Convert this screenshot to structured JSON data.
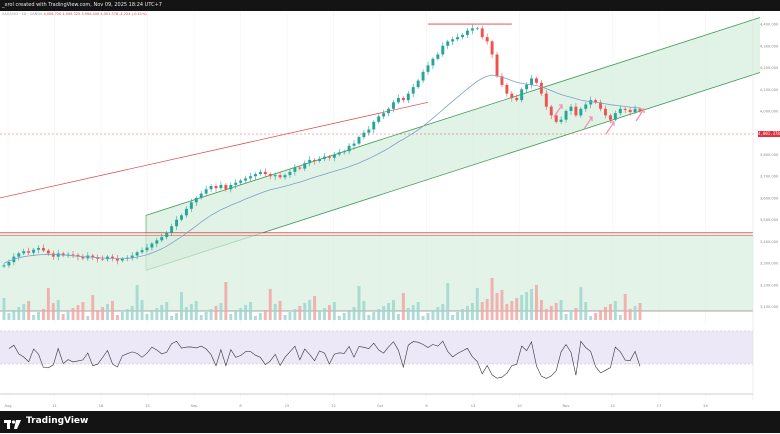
{
  "header": {
    "caption": "_xrol created with TradingView.com, Nov 09, 2025 18:24 UTC+7"
  },
  "legend": {
    "text": "XAU/USD · 1D · OANDA",
    "ohlc": "4,006.720  4,009.325  3,994.440  4,001.378  -4.224 (-0.11%)"
  },
  "price_tag": "4,001.378",
  "footer": {
    "brand": "TradingView"
  },
  "colors": {
    "up": "#26a69a",
    "down": "#ef5350",
    "channel_fill": "#d7eedd",
    "channel_line": "#3c9a55",
    "trend_line": "#e03c3c",
    "ma": "#7ea0c8",
    "rsi": "#333333",
    "rsi_band": "#ece8f7",
    "arrow": "#f48fb1"
  },
  "chart_data": [
    {
      "type": "candlestick",
      "title": "XAU/USD · 1D",
      "x_ticks": [
        "Aug",
        "11",
        "18",
        "25",
        "Sep",
        "8",
        "15",
        "22",
        "Oct",
        "6",
        "13",
        "20",
        "Nov",
        "10",
        "17",
        "24"
      ],
      "y_ticks": [
        "4,400.000",
        "4,300.000",
        "4,200.000",
        "4,100.000",
        "4,000.000",
        "3,900.000",
        "3,800.000",
        "3,700.000",
        "3,600.000",
        "3,500.000",
        "3,400.000",
        "3,300.000",
        "3,200.000",
        "3,100.000"
      ],
      "ylim": [
        3080,
        4460
      ],
      "closes": [
        3290,
        3305,
        3330,
        3345,
        3355,
        3348,
        3362,
        3370,
        3358,
        3345,
        3330,
        3345,
        3335,
        3340,
        3338,
        3330,
        3322,
        3335,
        3328,
        3320,
        3318,
        3330,
        3322,
        3312,
        3320,
        3325,
        3335,
        3350,
        3360,
        3372,
        3390,
        3405,
        3420,
        3440,
        3470,
        3500,
        3520,
        3550,
        3580,
        3600,
        3620,
        3640,
        3655,
        3645,
        3660,
        3640,
        3660,
        3670,
        3680,
        3690,
        3700,
        3710,
        3720,
        3710,
        3700,
        3705,
        3695,
        3705,
        3720,
        3740,
        3735,
        3760,
        3775,
        3770,
        3780,
        3790,
        3785,
        3800,
        3810,
        3815,
        3840,
        3850,
        3880,
        3900,
        3915,
        3950,
        3975,
        3990,
        4010,
        4040,
        4060,
        4050,
        4080,
        4110,
        4140,
        4180,
        4210,
        4240,
        4260,
        4300,
        4320,
        4330,
        4340,
        4350,
        4370,
        4380,
        4380,
        4340,
        4320,
        4260,
        4160,
        4120,
        4080,
        4060,
        4050,
        4100,
        4120,
        4150,
        4130,
        4080,
        4020,
        3980,
        3950,
        3960,
        4000,
        4020,
        3980,
        4010,
        4030,
        4050,
        4040,
        4010,
        3980,
        3960,
        3990,
        4010,
        4005,
        3995,
        4010,
        4001
      ],
      "series": [
        {
          "values": [
            3300,
            3310,
            3318,
            3325,
            3330,
            3333,
            3336,
            3338,
            3340,
            3341,
            3340,
            3339,
            3338,
            3336,
            3334,
            3332,
            3330,
            3329,
            3327,
            3325,
            3324,
            3323,
            3322,
            3321,
            3321,
            3322,
            3324,
            3328,
            3333,
            3339,
            3347,
            3356,
            3366,
            3378,
            3392,
            3407,
            3422,
            3438,
            3455,
            3472,
            3489,
            3505,
            3520,
            3533,
            3546,
            3556,
            3566,
            3576,
            3585,
            3595,
            3604,
            3613,
            3622,
            3630,
            3637,
            3643,
            3648,
            3654,
            3660,
            3667,
            3673,
            3680,
            3688,
            3695,
            3702,
            3709,
            3716,
            3723,
            3730,
            3736,
            3744,
            3752,
            3761,
            3771,
            3781,
            3792,
            3804,
            3816,
            3829,
            3843,
            3858,
            3870,
            3884,
            3898,
            3913,
            3930,
            3948,
            3967,
            3986,
            4006,
            4026,
            4045,
            4064,
            4083,
            4102,
            4120,
            4137,
            4150,
            4160,
            4165,
            4162,
            4156,
            4148,
            4140,
            4132,
            4127,
            4123,
            4120,
            4117,
            4111,
            4103,
            4094,
            4084,
            4076,
            4069,
            4063,
            4056,
            4050,
            4046,
            4043,
            4040,
            4037,
            4033,
            4029,
            4026,
            4023,
            4021,
            4018,
            4016,
            4014
          ]
        }
      ],
      "annotations": [
        "channel",
        "trend line",
        "resistance 4380",
        "support zone 3400-3440",
        "arrows"
      ]
    },
    {
      "type": "bar",
      "title": "Volume"
    },
    {
      "type": "line",
      "title": "RSI"
    }
  ]
}
